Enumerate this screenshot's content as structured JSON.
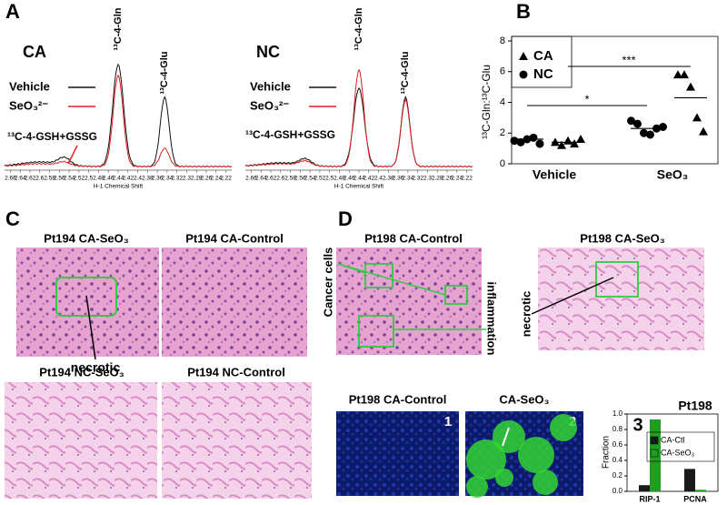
{
  "panel_a": {
    "label": "A",
    "xlabel": "H-1 Chemical Shift",
    "xlim": [
      2.672,
      2.208
    ],
    "xticks": [
      2.66,
      2.64,
      2.62,
      2.6,
      2.58,
      2.56,
      2.54,
      2.52,
      2.5,
      2.48,
      2.46,
      2.44,
      2.42,
      2.4,
      2.38,
      2.36,
      2.34,
      2.32,
      2.3,
      2.28,
      2.26,
      2.24,
      2.22
    ],
    "spectra": [
      {
        "title": "CA",
        "legend": [
          "Vehicle",
          "SeO₃²⁻"
        ],
        "peaks": [
          "¹³C-4-Gln",
          "¹³C-4-Glu"
        ],
        "annotation": "¹³C-4-GSH+GSSG"
      },
      {
        "title": "NC",
        "legend": [
          "Vehicle",
          "SeO₃²⁻"
        ],
        "peaks": [
          "¹³C-4-Gln",
          "¹³C-4-Glu"
        ],
        "annotation": "¹³C-4-GSH+GSSG"
      }
    ]
  },
  "chart_data": [
    {
      "type": "scatter",
      "label": "B",
      "ylabel": "¹³C-Gln:¹³C-Glu",
      "categories": [
        "Vehicle",
        "SeO₃"
      ],
      "ylim": [
        0,
        8
      ],
      "yticks": [
        0,
        2,
        4,
        6,
        8
      ],
      "significance": [
        "*",
        "***"
      ],
      "legend": "upper left",
      "series": [
        {
          "name": "CA",
          "marker": "triangle",
          "color": "#000000",
          "groups": [
            {
              "values": [
                1.4,
                1.2,
                1.5,
                1.3,
                1.6
              ],
              "mean": 1.4
            },
            {
              "values": [
                5.8,
                5.8,
                5.0,
                3.0,
                2.1
              ],
              "mean": 4.3
            }
          ]
        },
        {
          "name": "NC",
          "marker": "circle",
          "color": "#000000",
          "groups": [
            {
              "values": [
                1.5,
                1.4,
                1.6,
                1.7,
                1.3
              ],
              "mean": 1.6
            },
            {
              "values": [
                2.8,
                2.6,
                2.0,
                1.9,
                2.3,
                2.4
              ],
              "mean": 2.3
            }
          ]
        }
      ]
    },
    {
      "type": "bar",
      "label": "3",
      "title": "Pt198",
      "ylabel": "Fraction",
      "categories": [
        "RIP-1",
        "PCNA"
      ],
      "ylim": [
        0,
        1
      ],
      "yticks": [
        {
          "value": 0,
          "label": "0.0"
        },
        0.2,
        0.4,
        0.6,
        0.8,
        {
          "value": 1,
          "label": "1.0"
        }
      ],
      "legend": "upper right",
      "series": [
        {
          "name": "CA-Ctl",
          "color": "#1a1a1a",
          "values": [
            0.08,
            0.29
          ]
        },
        {
          "name": "CA-SeO₃",
          "color": "#1f9e1f",
          "values": [
            0.93,
            0.02
          ]
        }
      ]
    }
  ],
  "panel_c": {
    "label": "C",
    "images": [
      "Pt194 CA-SeO₃",
      "Pt194 CA-Control",
      "Pt194 NC-SeO₃",
      "Pt194 NC-Control"
    ],
    "annotation": "necrotic"
  },
  "panel_d": {
    "label": "D",
    "images": [
      "Pt198 CA-Control",
      "Pt198 CA-SeO₃"
    ],
    "annotations": [
      "Cancer cells",
      "inflammation",
      "necrotic"
    ],
    "fluorescence": [
      {
        "title": "Pt198 CA-Control",
        "number": "1"
      },
      {
        "title": "CA-SeO₃",
        "number": "2"
      }
    ]
  }
}
